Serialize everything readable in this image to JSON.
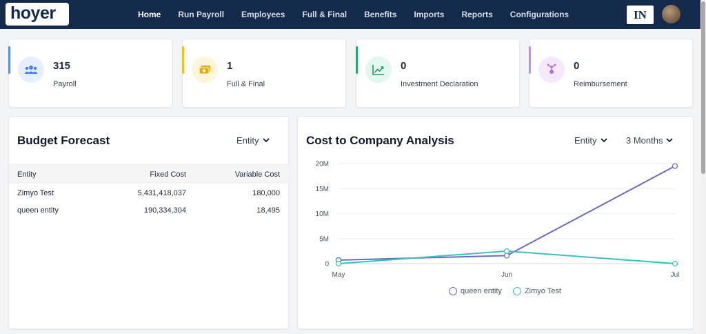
{
  "brand": {
    "logo_text": "hoyer"
  },
  "nav": {
    "items": [
      "Home",
      "Run Payroll",
      "Employees",
      "Full & Final",
      "Benefits",
      "Imports",
      "Reports",
      "Configurations"
    ],
    "active": "Home"
  },
  "header": {
    "country_badge": "IN"
  },
  "stats": [
    {
      "value": "315",
      "label": "Payroll",
      "icon": "users-icon",
      "accent": "#5b8def",
      "icon_bg": "#e6efff",
      "icon_color": "#4a7ee8"
    },
    {
      "value": "1",
      "label": "Full & Final",
      "icon": "money-icon",
      "accent": "#f4c01e",
      "icon_bg": "#fff6d9",
      "icon_color": "#e5ad0a"
    },
    {
      "value": "0",
      "label": "Investment Declaration",
      "icon": "trend-chart-icon",
      "accent": "#22a873",
      "icon_bg": "#e3f7ee",
      "icon_color": "#1a9a65"
    },
    {
      "value": "0",
      "label": "Reimbursement",
      "icon": "receipt-hand-icon",
      "accent": "#c68bef",
      "icon_bg": "#f5e9fd",
      "icon_color": "#b46ee3"
    }
  ],
  "budget_forecast": {
    "title": "Budget Forecast",
    "filter": "Entity",
    "columns": [
      "Entity",
      "Fixed Cost",
      "Variable Cost"
    ],
    "rows": [
      {
        "entity": "Zimyo Test",
        "fixed": "5,431,418,037",
        "variable": "180,000"
      },
      {
        "entity": "queen entity",
        "fixed": "190,334,304",
        "variable": "18,495"
      }
    ]
  },
  "ctc": {
    "title": "Cost to Company Analysis",
    "filter_entity": "Entity",
    "filter_period": "3 Months"
  },
  "chart_data": {
    "type": "line",
    "categories": [
      "May",
      "Jun",
      "Jul"
    ],
    "y_ticks": [
      "0",
      "5M",
      "10M",
      "15M",
      "20M"
    ],
    "ylim": [
      0,
      20000000
    ],
    "grid": true,
    "legend_position": "bottom-center",
    "series": [
      {
        "name": "queen entity",
        "values": [
          700000,
          1600000,
          19500000
        ],
        "color": "#6b6bb8"
      },
      {
        "name": "Zimyo Test",
        "values": [
          0,
          2500000,
          0
        ],
        "color": "#3bc0c0"
      }
    ]
  }
}
